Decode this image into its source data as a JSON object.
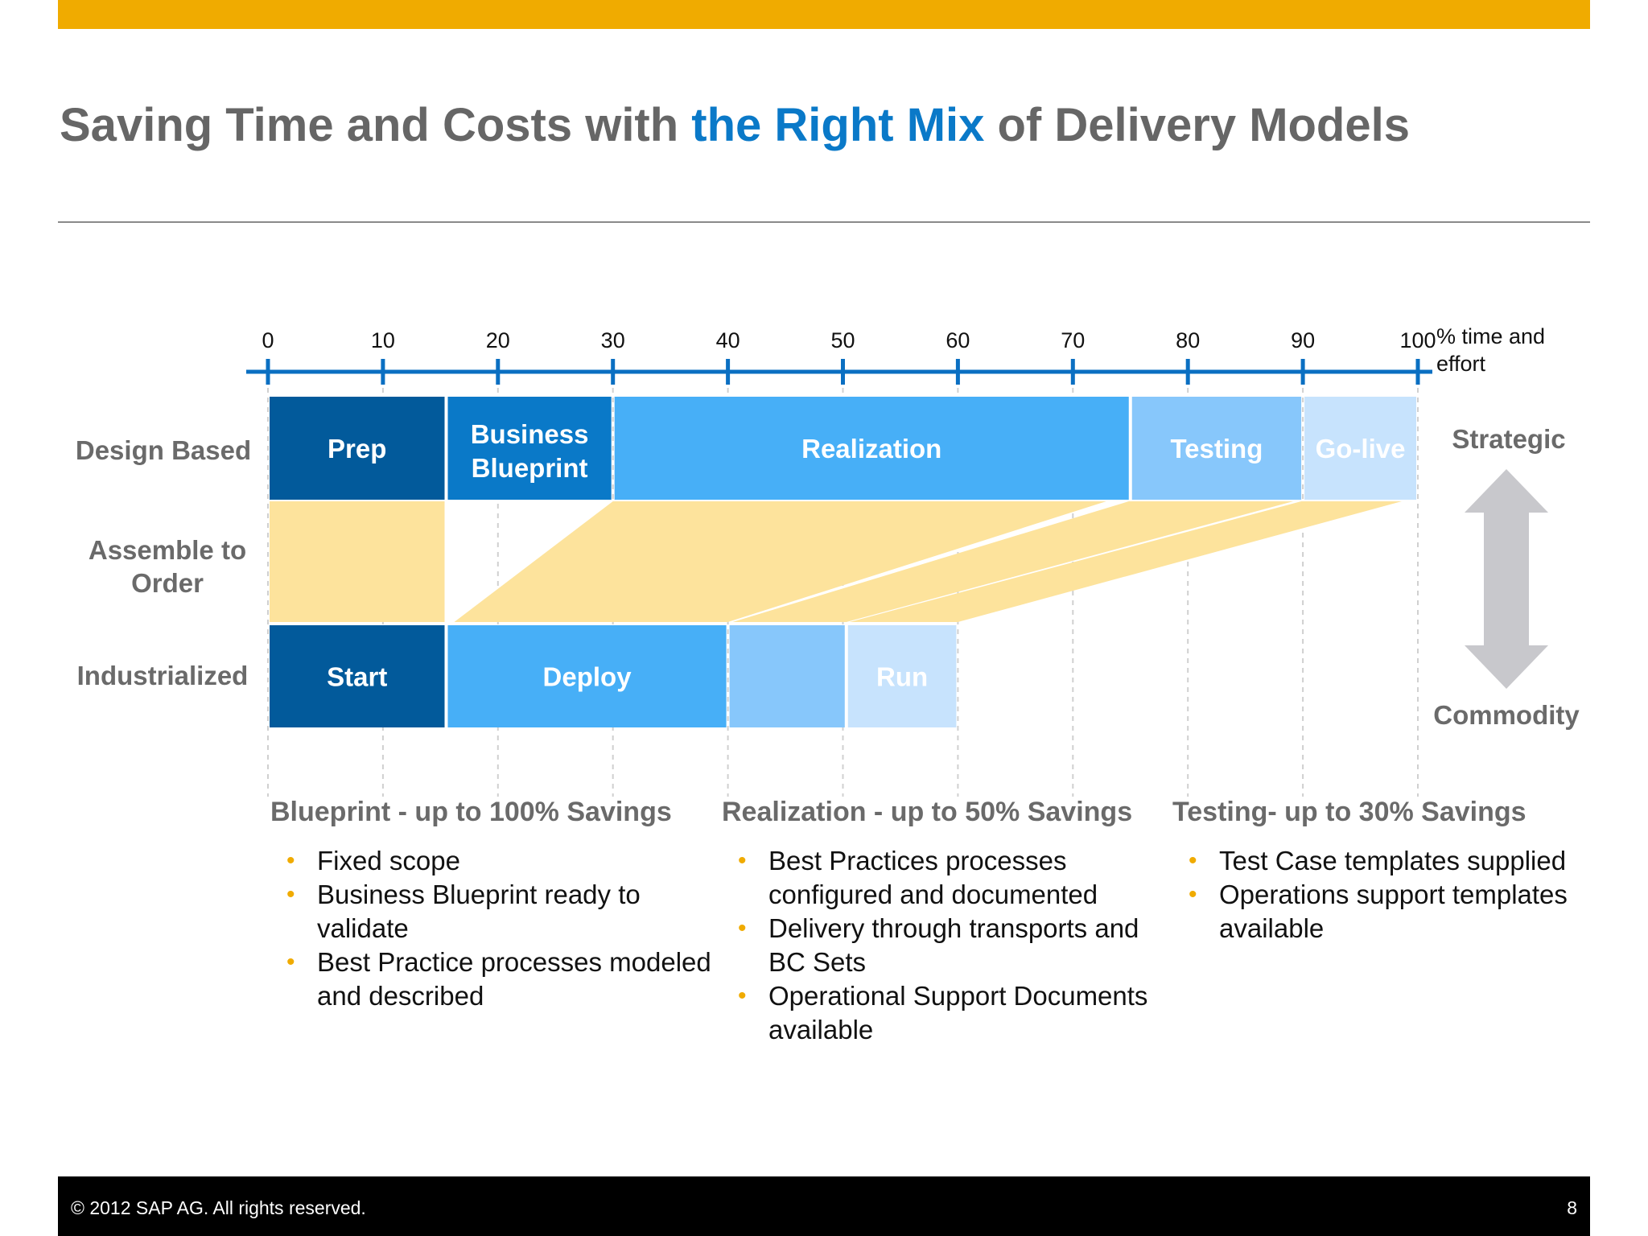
{
  "title": {
    "part1": "Saving Time and Costs with ",
    "highlight": "the Right Mix",
    "part2": " of Delivery Models"
  },
  "axis": {
    "ticks": [
      "0",
      "10",
      "20",
      "30",
      "40",
      "50",
      "60",
      "70",
      "80",
      "90",
      "100"
    ],
    "unit_line1": "% time and",
    "unit_line2": "effort"
  },
  "rows": {
    "design": "Design Based",
    "assemble_line1": "Assemble to",
    "assemble_line2": "Order",
    "industrialized": "Industrialized"
  },
  "design_phases": [
    {
      "id": "prep",
      "line1": "Prep",
      "line2": "",
      "start": 0,
      "end": 15.5,
      "color": "#025a9b"
    },
    {
      "id": "blueprint",
      "line1": "Business",
      "line2": "Blueprint",
      "start": 15.5,
      "end": 30,
      "color": "#0a79c8"
    },
    {
      "id": "realization",
      "line1": "Realization",
      "line2": "",
      "start": 30,
      "end": 75,
      "color": "#47aff7"
    },
    {
      "id": "testing",
      "line1": "Testing",
      "line2": "",
      "start": 75,
      "end": 90,
      "color": "#87c7fb"
    },
    {
      "id": "golive",
      "line1": "Go-live",
      "line2": "",
      "start": 90,
      "end": 100,
      "color": "#c7e3fd"
    }
  ],
  "industrialized_phases": [
    {
      "id": "start",
      "line1": "Start",
      "start": 0,
      "end": 15.5,
      "color": "#025a9b"
    },
    {
      "id": "deploy",
      "line1": "Deploy",
      "start": 15.5,
      "end": 40,
      "color": "#47aff7"
    },
    {
      "id": "test",
      "line1": "",
      "start": 40,
      "end": 50.3,
      "color": "#87c7fb"
    },
    {
      "id": "run",
      "line1": "Run",
      "start": 50.3,
      "end": 60,
      "color": "#c7e3fd"
    }
  ],
  "side": {
    "top": "Strategic",
    "bottom": "Commodity"
  },
  "savings": [
    {
      "heading": "Blueprint - up to 100% Savings",
      "items": [
        "Fixed scope",
        "Business Blueprint ready to validate",
        "Best Practice processes modeled and described"
      ]
    },
    {
      "heading": "Realization - up to 50% Savings",
      "items": [
        "Best Practices processes configured and documented",
        "Delivery through transports and BC Sets",
        "Operational Support Documents available"
      ]
    },
    {
      "heading": "Testing- up to 30% Savings",
      "items": [
        "Test Case templates supplied",
        "Operations support templates available"
      ]
    }
  ],
  "footer": {
    "copyright": "©  2012 SAP AG. All rights reserved.",
    "page": "8"
  },
  "colors": {
    "accent": "#f0ab00",
    "axis": "#0a6fc2",
    "connector": "#fde39c",
    "arrow": "#c8c8cc"
  }
}
